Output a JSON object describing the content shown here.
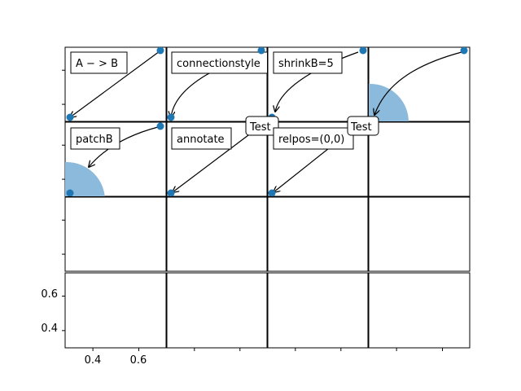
{
  "chart_data": {
    "type": "scatter",
    "grid": "4x4 subplots, shared axes",
    "x_ticks": [
      "0.4",
      "0.6"
    ],
    "y_ticks": [
      "0.6",
      "0.4"
    ],
    "xlim": [
      0.28,
      0.72
    ],
    "ylim": [
      0.28,
      0.72
    ],
    "points": [
      {
        "x": 0.3,
        "y": 0.3
      },
      {
        "x": 0.7,
        "y": 0.7
      }
    ],
    "colors": {
      "marker": "#1f77b4",
      "circle": "#8bbadc"
    },
    "panels": [
      {
        "label": "A $-$ > B",
        "display": "A − > B",
        "arrow": "straight"
      },
      {
        "label": "connectionstyle",
        "display": "connectionstyle",
        "arrow": "arc3,rad=0.3"
      },
      {
        "label": "shrinkB=5",
        "display": "shrinkB=5",
        "arrow": "arc3,rad=0.3 shrinkB=5"
      },
      {
        "label": "",
        "display": "",
        "arrow": "arc3,rad=0.3 with patch circle"
      },
      {
        "label": "patchB",
        "display": "patchB",
        "arrow": "arc3,rad=0.2 with patch circle"
      },
      {
        "label": "annotate",
        "display": "annotate",
        "arrow": "straight",
        "text_box": "Test"
      },
      {
        "label": "relpos=(0,0)",
        "display": "relpos=(0,0)",
        "arrow": "straight",
        "text_box": "Test"
      },
      {
        "label": "",
        "display": "",
        "arrow": "none"
      }
    ]
  },
  "labels": {
    "p0": "A − > B",
    "p1": "connectionstyle",
    "p2": "shrinkB=5",
    "p4": "patchB",
    "p5": "annotate",
    "p6": "relpos=(0,0)",
    "test1": "Test",
    "test2": "Test"
  }
}
